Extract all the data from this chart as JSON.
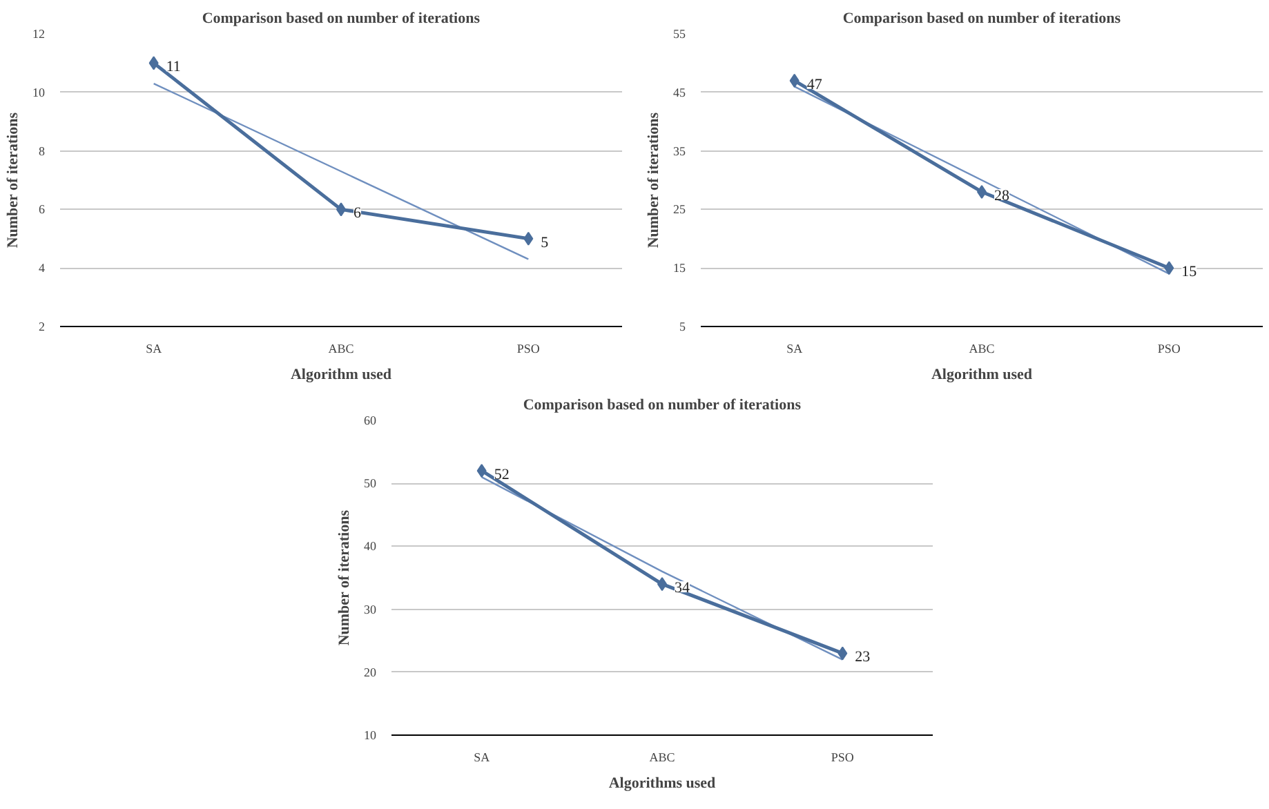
{
  "chart_data": [
    {
      "type": "line",
      "title": "Comparison based on number of iterations",
      "xlabel": "Algorithm used",
      "ylabel": "Number of iterations",
      "categories": [
        "SA",
        "ABC",
        "PSO"
      ],
      "ylim": [
        2,
        12
      ],
      "yticks": [
        2,
        4,
        6,
        8,
        10,
        12
      ],
      "grid": "y",
      "series": [
        {
          "color": "#4a6e9c",
          "values": [
            11,
            6,
            5
          ],
          "value_labels": [
            "11",
            "6",
            "5"
          ],
          "marker": "diamond"
        },
        {
          "color": "#6f8fbf",
          "values": [
            10.3,
            7.3,
            4.3
          ],
          "marker": "none"
        }
      ]
    },
    {
      "type": "line",
      "title": "Comparison based on number of iterations",
      "xlabel": "Algorithm used",
      "ylabel": "Number of iterations",
      "categories": [
        "SA",
        "ABC",
        "PSO"
      ],
      "ylim": [
        5,
        55
      ],
      "yticks": [
        5,
        15,
        25,
        35,
        45,
        55
      ],
      "grid": "y",
      "series": [
        {
          "color": "#4a6e9c",
          "values": [
            47,
            28,
            15
          ],
          "value_labels": [
            "47",
            "28",
            "15"
          ],
          "marker": "diamond"
        },
        {
          "color": "#6f8fbf",
          "values": [
            46,
            30,
            14
          ],
          "marker": "none"
        }
      ]
    },
    {
      "type": "line",
      "title": "Comparison based on number of iterations",
      "xlabel": "Algorithms used",
      "ylabel": "Number of iterations",
      "categories": [
        "SA",
        "ABC",
        "PSO"
      ],
      "ylim": [
        10,
        60
      ],
      "yticks": [
        10,
        20,
        30,
        40,
        50,
        60
      ],
      "grid": "y",
      "series": [
        {
          "color": "#4a6e9c",
          "values": [
            52,
            34,
            23
          ],
          "value_labels": [
            "52",
            "34",
            "23"
          ],
          "marker": "diamond"
        },
        {
          "color": "#6f8fbf",
          "values": [
            51,
            36,
            22
          ],
          "marker": "none"
        }
      ]
    }
  ]
}
